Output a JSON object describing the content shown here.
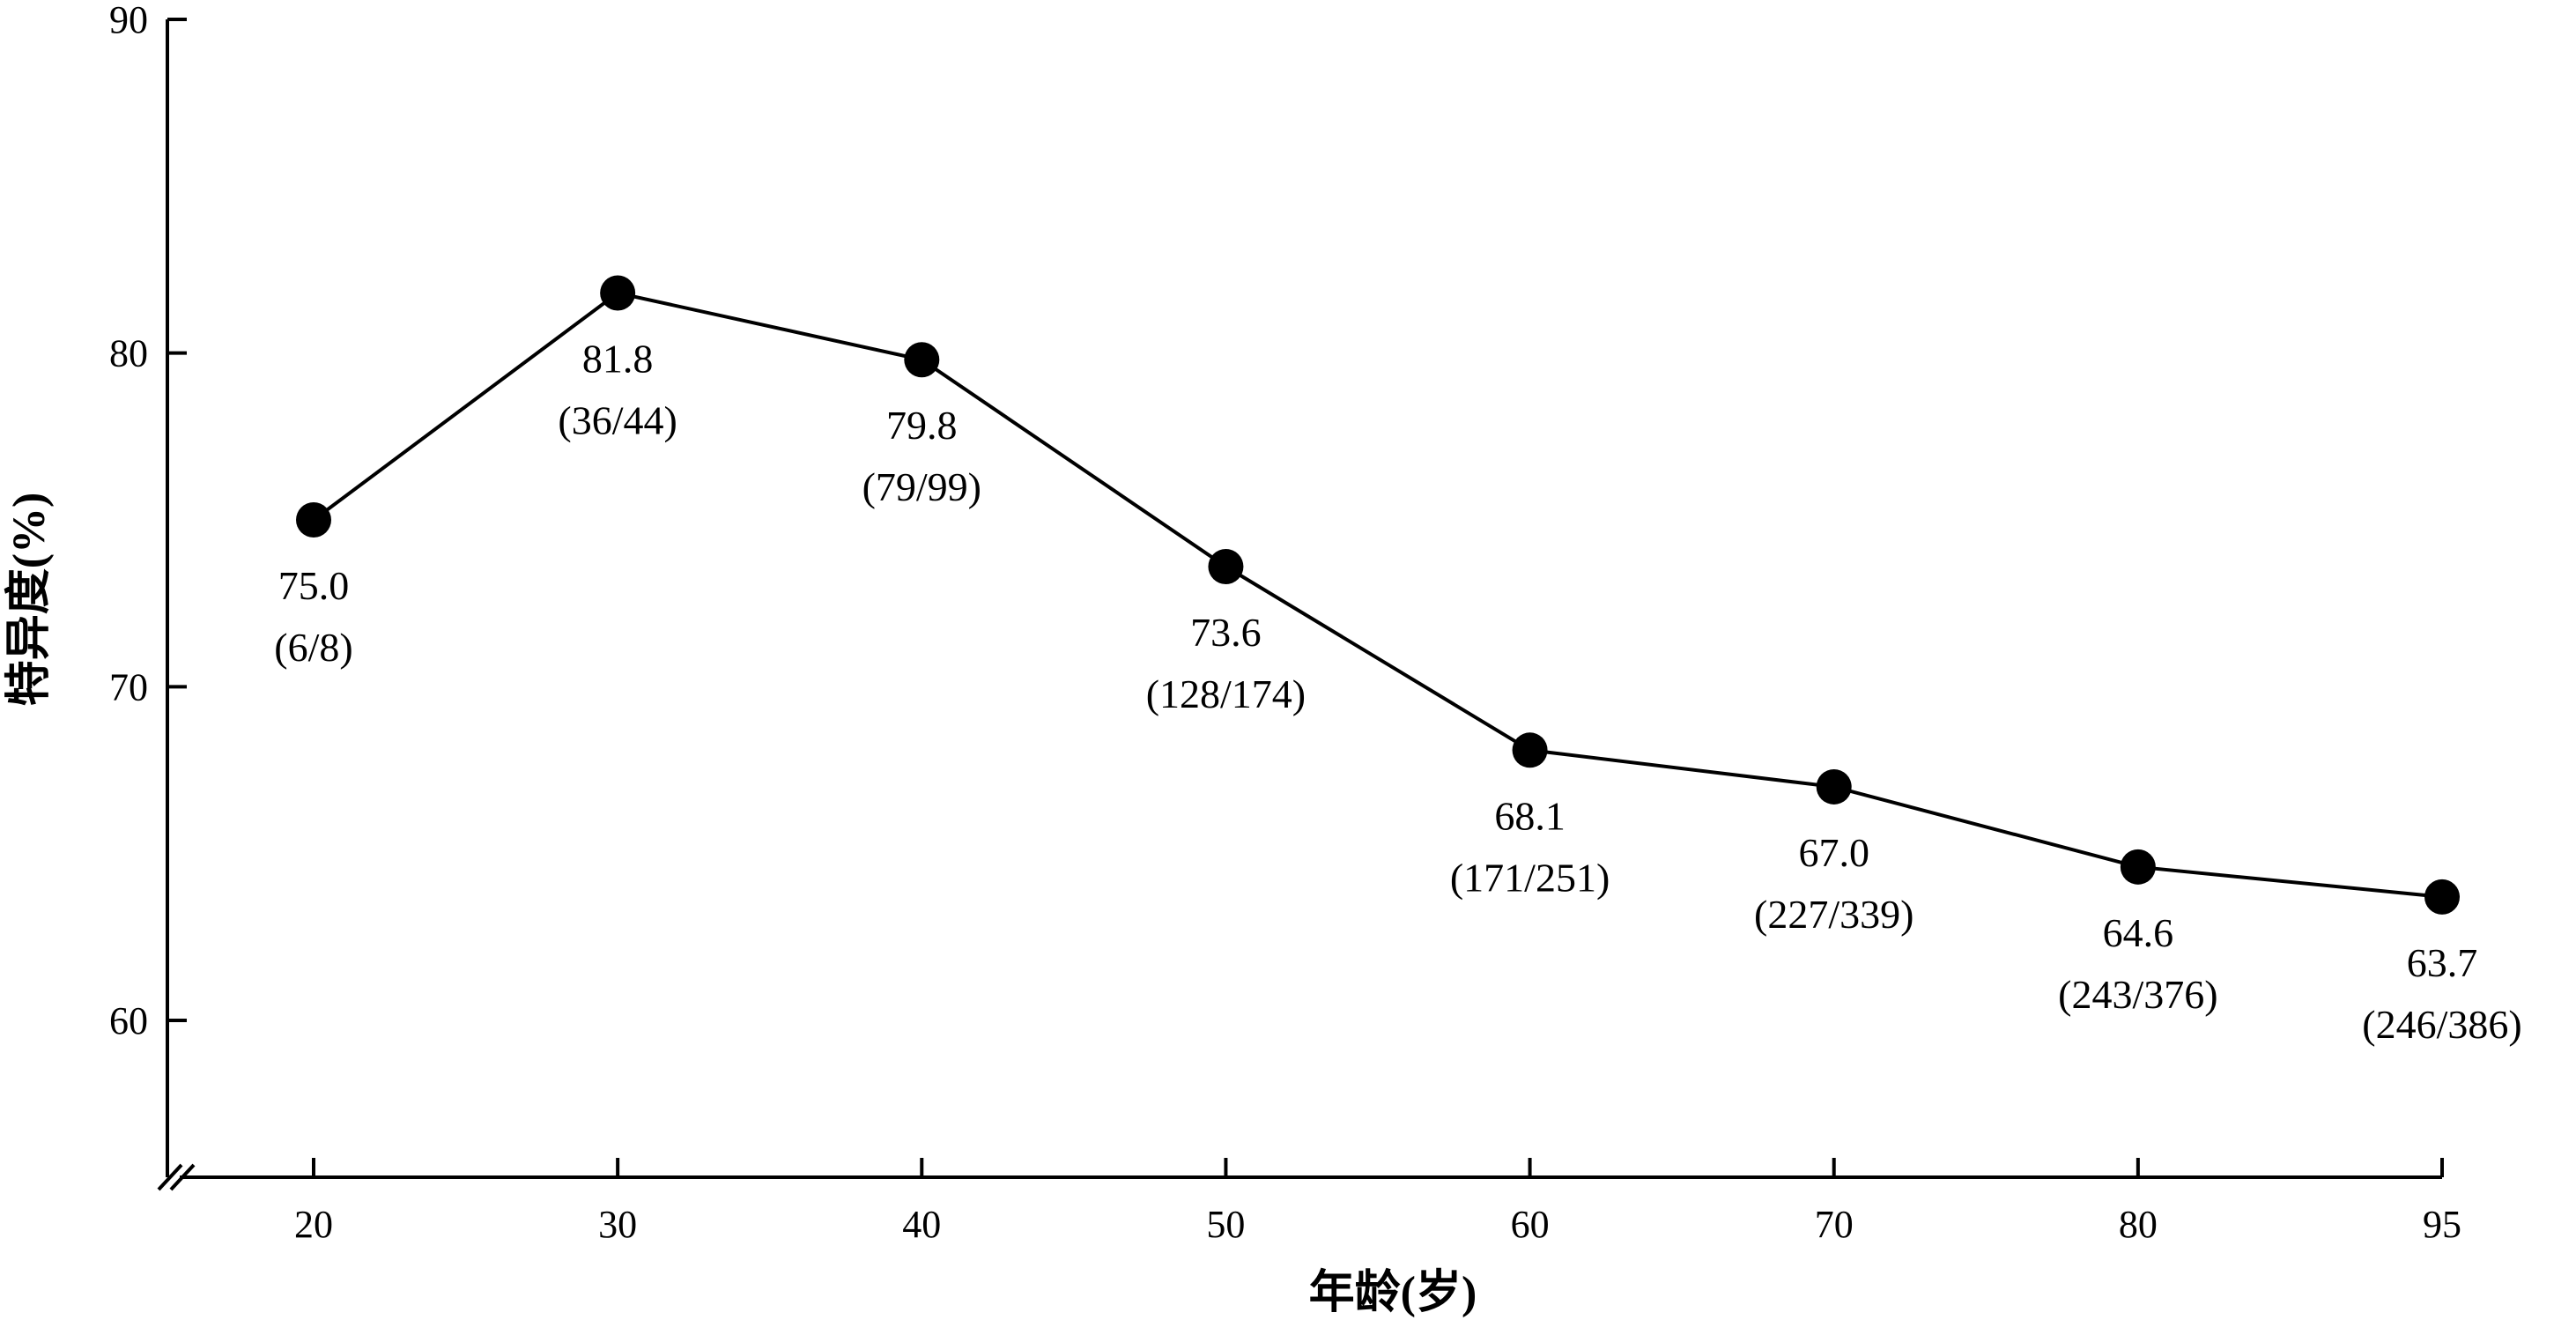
{
  "chart_data": {
    "type": "line",
    "xlabel": "年龄(岁)",
    "ylabel": "特异度(%)",
    "x": [
      20,
      30,
      40,
      50,
      60,
      70,
      80,
      95
    ],
    "x_tick_labels": [
      "20",
      "30",
      "40",
      "50",
      "60",
      "70",
      "80",
      "95"
    ],
    "y_ticks": [
      60,
      70,
      80,
      90
    ],
    "y_tick_labels": [
      "60",
      "70",
      "80",
      "90"
    ],
    "ylim": [
      55.3,
      90
    ],
    "y_axis_break": true,
    "grid": false,
    "legend": "none",
    "series": [
      {
        "values": [
          75.0,
          81.8,
          79.8,
          73.6,
          68.1,
          67.0,
          64.6,
          63.7
        ],
        "value_labels": [
          "75.0",
          "81.8",
          "79.8",
          "73.6",
          "68.1",
          "67.0",
          "64.6",
          "63.7"
        ],
        "count_labels": [
          "(6/8)",
          "(36/44)",
          "(79/99)",
          "(128/174)",
          "(171/251)",
          "(227/339)",
          "(243/376)",
          "(246/386)"
        ],
        "color": "#000000"
      }
    ]
  }
}
